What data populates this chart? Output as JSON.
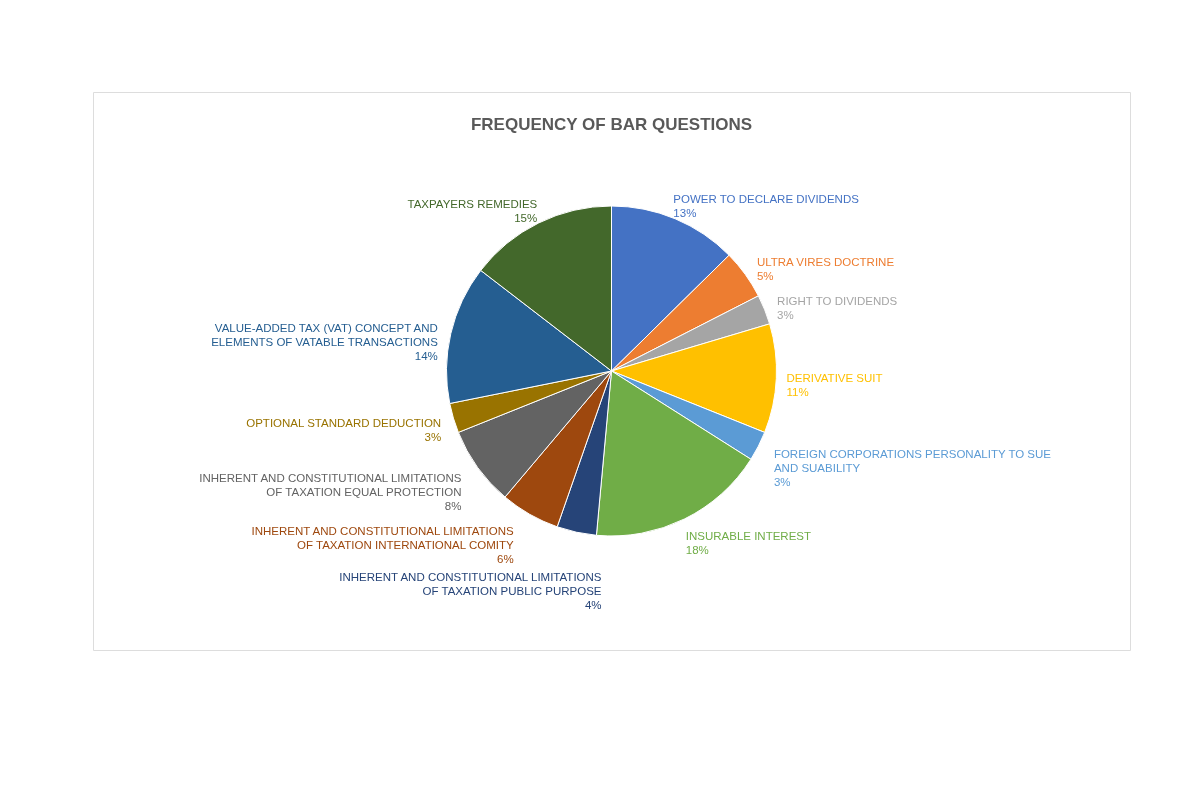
{
  "chart_data": {
    "type": "pie",
    "title": "FREQUENCY OF BAR QUESTIONS",
    "categories": [
      "POWER TO DECLARE DIVIDENDS",
      "ULTRA VIRES DOCTRINE",
      "RIGHT TO DIVIDENDS",
      "DERIVATIVE SUIT",
      "FOREIGN CORPORATIONS PERSONALITY TO SUE AND SUABILITY",
      "INSURABLE INTEREST",
      "INHERENT AND CONSTITUTIONAL LIMITATIONS OF TAXATION PUBLIC PURPOSE",
      "INHERENT AND CONSTITUTIONAL LIMITATIONS OF TAXATION INTERNATIONAL COMITY",
      "INHERENT AND CONSTITUTIONAL LIMITATIONS OF TAXATION EQUAL PROTECTION",
      "OPTIONAL STANDARD DEDUCTION",
      "VALUE-ADDED TAX (VAT) CONCEPT AND ELEMENTS OF VATABLE TRANSACTIONS",
      "TAXPAYERS REMEDIES"
    ],
    "values": [
      13,
      5,
      3,
      11,
      3,
      18,
      4,
      6,
      8,
      3,
      14,
      15
    ],
    "value_labels": [
      "13%",
      "5%",
      "3%",
      "11%",
      "3%",
      "18%",
      "4%",
      "6%",
      "8%",
      "3%",
      "14%",
      "15%"
    ],
    "colors": [
      "#4472c4",
      "#ed7d31",
      "#a5a5a5",
      "#ffc000",
      "#5b9bd5",
      "#70ad47",
      "#264478",
      "#9e480e",
      "#636363",
      "#997300",
      "#255e91",
      "#43682b"
    ],
    "legend": false
  }
}
